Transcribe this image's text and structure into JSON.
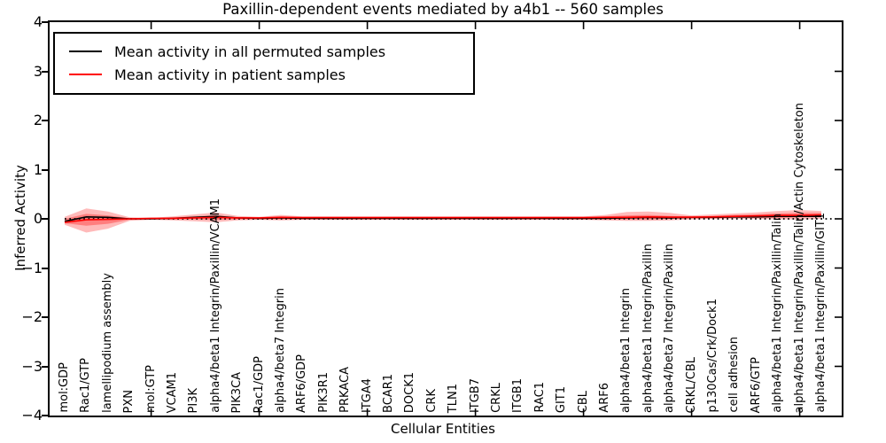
{
  "title": "Paxillin-dependent events mediated by a4b1 -- 560 samples",
  "legend": {
    "entries": [
      {
        "label": "Mean activity in all permuted samples",
        "color": "#000000"
      },
      {
        "label": "Mean activity in patient samples",
        "color": "#ff0000"
      }
    ]
  },
  "chart_data": {
    "type": "line",
    "title": "Paxillin-dependent events mediated by a4b1 -- 560 samples",
    "xlabel": "Cellular Entities",
    "ylabel": "Inferred Activity",
    "ylim": [
      -4,
      4
    ],
    "ytick_labels": [
      "4",
      "3",
      "2",
      "1",
      "0",
      "−1",
      "−2",
      "−3",
      "−4"
    ],
    "ytick_values": [
      4,
      3,
      2,
      1,
      0,
      -1,
      -2,
      -3,
      -4
    ],
    "xtick_indices": [
      4,
      9,
      14,
      19,
      24,
      29,
      34
    ],
    "grid": false,
    "legend_position": "upper left",
    "zero_reference_line": {
      "value": 0,
      "style": "dotted",
      "color": "#000000"
    },
    "categories": [
      "mol:GDP",
      "Rac1/GTP",
      "lamellipodium assembly",
      "PXN",
      "mol:GTP",
      "VCAM1",
      "PI3K",
      "alpha4/beta1 Integrin/Paxillin/VCAM1",
      "PIK3CA",
      "Rac1/GDP",
      "alpha4/beta7 Integrin",
      "ARF6/GDP",
      "PIK3R1",
      "PRKACA",
      "ITGA4",
      "BCAR1",
      "DOCK1",
      "CRK",
      "TLN1",
      "ITGB7",
      "CRKL",
      "ITGB1",
      "RAC1",
      "GIT1",
      "CBL",
      "ARF6",
      "alpha4/beta1 Integrin",
      "alpha4/beta1 Integrin/Paxillin",
      "alpha4/beta7 Integrin/Paxillin",
      "CRKL/CBL",
      "p130Cas/Crk/Dock1",
      "cell adhesion",
      "ARF6/GTP",
      "alpha4/beta1 Integrin/Paxillin/Talin",
      "alpha4/beta1 Integrin/Paxillin/Talin/Actin Cytoskeleton",
      "alpha4/beta1 Integrin/Paxillin/GIT1"
    ],
    "series": [
      {
        "name": "Mean activity in all permuted samples",
        "color": "#000000",
        "values": [
          -0.05,
          0.04,
          0.03,
          0.0,
          0.0,
          0.01,
          0.03,
          0.05,
          0.02,
          0.01,
          0.02,
          0.01,
          0.01,
          0.01,
          0.01,
          0.01,
          0.01,
          0.01,
          0.01,
          0.01,
          0.01,
          0.01,
          0.01,
          0.01,
          0.01,
          0.01,
          0.02,
          0.03,
          0.02,
          0.03,
          0.03,
          0.04,
          0.04,
          0.05,
          0.05,
          0.05
        ]
      },
      {
        "name": "Mean activity in patient samples",
        "color": "#ff0000",
        "values": [
          -0.07,
          -0.02,
          -0.01,
          0.0,
          0.01,
          0.01,
          0.02,
          0.03,
          0.02,
          0.02,
          0.03,
          0.025,
          0.025,
          0.025,
          0.025,
          0.025,
          0.025,
          0.025,
          0.025,
          0.025,
          0.025,
          0.025,
          0.025,
          0.025,
          0.025,
          0.03,
          0.03,
          0.04,
          0.035,
          0.035,
          0.04,
          0.05,
          0.06,
          0.07,
          0.07,
          0.08
        ]
      }
    ],
    "bands": [
      {
        "name": "outer confidence band",
        "color": "#ff0000",
        "opacity": 0.27,
        "hi": [
          0.04,
          0.21,
          0.15,
          0.03,
          0.02,
          0.05,
          0.09,
          0.13,
          0.06,
          0.04,
          0.08,
          0.05,
          0.05,
          0.05,
          0.05,
          0.05,
          0.05,
          0.05,
          0.05,
          0.05,
          0.05,
          0.05,
          0.05,
          0.05,
          0.05,
          0.08,
          0.14,
          0.15,
          0.12,
          0.07,
          0.09,
          0.11,
          0.13,
          0.16,
          0.18,
          0.16
        ],
        "lo": [
          -0.12,
          -0.28,
          -0.2,
          -0.04,
          -0.02,
          -0.03,
          -0.05,
          -0.07,
          -0.03,
          -0.02,
          -0.03,
          -0.02,
          -0.02,
          -0.02,
          -0.02,
          -0.02,
          -0.02,
          -0.02,
          -0.02,
          -0.02,
          -0.02,
          -0.02,
          -0.02,
          -0.02,
          -0.02,
          -0.03,
          -0.04,
          -0.04,
          -0.03,
          -0.01,
          0.0,
          0.0,
          0.0,
          -0.01,
          -0.01,
          0.0
        ]
      },
      {
        "name": "inner confidence band",
        "color": "#ff0000",
        "opacity": 0.32,
        "hi": [
          0.0,
          0.1,
          0.07,
          0.01,
          0.01,
          0.03,
          0.05,
          0.07,
          0.03,
          0.03,
          0.05,
          0.035,
          0.035,
          0.035,
          0.035,
          0.035,
          0.035,
          0.035,
          0.035,
          0.035,
          0.035,
          0.035,
          0.035,
          0.035,
          0.035,
          0.05,
          0.07,
          0.08,
          0.06,
          0.05,
          0.06,
          0.08,
          0.09,
          0.11,
          0.12,
          0.12
        ],
        "lo": [
          -0.09,
          -0.14,
          -0.1,
          -0.02,
          -0.01,
          -0.01,
          -0.01,
          -0.02,
          -0.01,
          -0.01,
          -0.01,
          -0.01,
          -0.01,
          -0.01,
          -0.01,
          -0.01,
          -0.01,
          -0.01,
          -0.01,
          -0.01,
          -0.01,
          -0.01,
          -0.01,
          -0.01,
          -0.01,
          -0.01,
          -0.01,
          -0.01,
          0.0,
          0.01,
          0.01,
          0.02,
          0.02,
          0.02,
          0.03,
          0.04
        ]
      }
    ]
  },
  "colors": {
    "frame": "#000000",
    "background": "#ffffff",
    "permuted_line": "#000000",
    "patient_line": "#ff0000",
    "band_fill": "#ff0000"
  }
}
